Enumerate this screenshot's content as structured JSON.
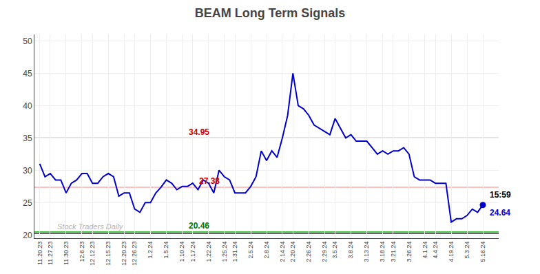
{
  "chart_data": {
    "type": "line",
    "title": "BEAM Long Term Signals",
    "categories": [
      "11.20.23",
      null,
      "11.27.23",
      null,
      null,
      "11.30.23",
      null,
      null,
      "12.6.23",
      null,
      "12.12.23",
      null,
      null,
      "12.15.23",
      null,
      null,
      "12.20.23",
      null,
      "12.26.23",
      null,
      null,
      "1.2.24",
      null,
      null,
      "1.5.24",
      null,
      null,
      "1.10.24",
      null,
      "1.17.24",
      null,
      null,
      "1.22.24",
      null,
      null,
      "1.25.24",
      null,
      "1.31.24",
      null,
      null,
      "2.5.24",
      null,
      null,
      "2.8.24",
      null,
      null,
      "2.14.24",
      null,
      "2.20.24",
      null,
      null,
      "2.26.24",
      null,
      null,
      "2.29.24",
      null,
      "3.5.24",
      null,
      null,
      "3.8.24",
      null,
      null,
      "3.13.24",
      null,
      null,
      "3.18.24",
      null,
      "3.21.24",
      null,
      null,
      "3.26.24",
      null,
      null,
      "4.1.24",
      null,
      "4.4.24",
      null,
      null,
      "4.19.24",
      null,
      null,
      "5.3.24",
      null,
      null,
      "5.16.24"
    ],
    "values": [
      31.0,
      29.0,
      29.5,
      28.5,
      28.5,
      26.5,
      28.0,
      28.5,
      29.5,
      29.5,
      28.0,
      28.0,
      29.0,
      29.5,
      29.0,
      26.0,
      26.5,
      26.5,
      24.0,
      23.5,
      25.0,
      25.0,
      26.5,
      27.38,
      28.5,
      28.0,
      27.0,
      27.5,
      27.5,
      28.0,
      27.0,
      28.5,
      28.0,
      26.5,
      30.0,
      29.0,
      28.5,
      26.5,
      26.5,
      26.5,
      27.5,
      29.0,
      33.0,
      31.5,
      33.0,
      32.0,
      35.0,
      38.5,
      45.0,
      40.0,
      39.5,
      38.5,
      37.0,
      36.5,
      36.0,
      35.5,
      38.0,
      36.5,
      35.0,
      35.5,
      34.5,
      34.5,
      34.5,
      33.5,
      32.5,
      33.0,
      32.5,
      33.0,
      33.0,
      33.5,
      32.5,
      29.0,
      28.5,
      28.5,
      28.5,
      28.0,
      28.0,
      28.0,
      22.0,
      22.5,
      22.5,
      23.0,
      24.0,
      23.5,
      24.64
    ],
    "color": "#0000cc",
    "endpoint_color": "#0000cc",
    "ylim": [
      19.5,
      51
    ],
    "yticks": [
      20,
      25,
      30,
      35,
      40,
      45,
      50
    ],
    "grid": true,
    "reference_lines": [
      {
        "y": 35.0,
        "color": "#ffaaaa"
      },
      {
        "y": 27.38,
        "color": "#ffaaaa"
      },
      {
        "y": 20.46,
        "color": "#00aa00"
      },
      {
        "y": 20.2,
        "color": "#333333"
      }
    ],
    "annotations": [
      {
        "text": "34.95",
        "y": 34.95,
        "color": "#cc0000"
      },
      {
        "text": "27.38",
        "y": 27.38,
        "color": "#cc0000"
      },
      {
        "text": "20.46",
        "y": 20.46,
        "color": "#007700"
      }
    ],
    "end_labels": [
      {
        "text": "15:59",
        "color": "#000000"
      },
      {
        "text": "24.64",
        "color": "#0000cc"
      }
    ],
    "watermark": {
      "text": "Stock Traders Daily",
      "color": "#aaaaaa"
    }
  }
}
